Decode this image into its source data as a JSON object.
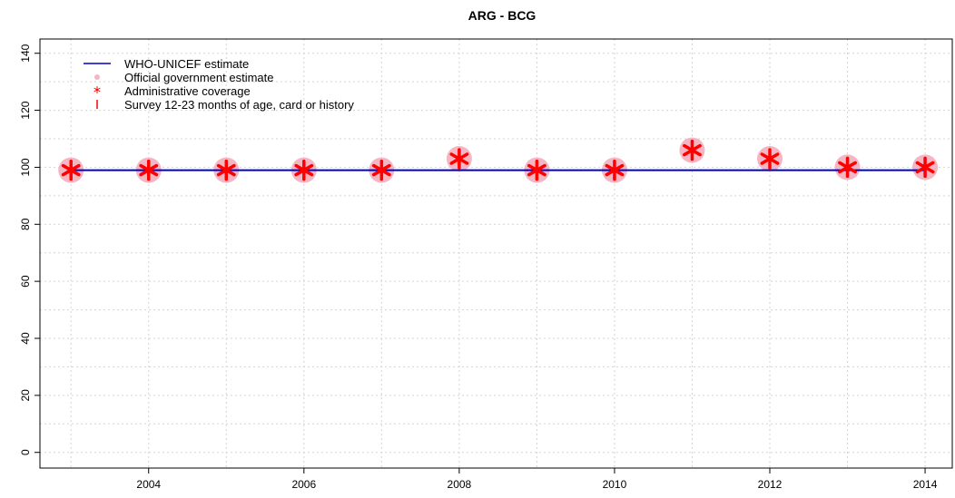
{
  "chart_data": {
    "type": "line",
    "title": "ARG  -  BCG",
    "xlabel": "",
    "ylabel": "",
    "xlim": [
      2002.6,
      2014.35
    ],
    "ylim": [
      -5.5,
      145
    ],
    "x_ticks": [
      2004,
      2006,
      2008,
      2010,
      2012,
      2014
    ],
    "x_tick_labels": [
      "2004",
      "2006",
      "2008",
      "2010",
      "2012",
      "2014"
    ],
    "y_ticks": [
      0,
      20,
      40,
      60,
      80,
      100,
      120,
      140
    ],
    "y_tick_labels": [
      "0",
      "20",
      "40",
      "60",
      "80",
      "100",
      "120",
      "140"
    ],
    "grid": true,
    "legend_position": "top-left",
    "series": [
      {
        "name": "WHO-UNICEF estimate",
        "kind": "line",
        "color": "#0000cc",
        "x": [
          2003,
          2004,
          2005,
          2006,
          2007,
          2008,
          2009,
          2010,
          2011,
          2012,
          2013,
          2014
        ],
        "values": [
          99,
          99,
          99,
          99,
          99,
          99,
          99,
          99,
          99,
          99,
          99,
          99
        ]
      },
      {
        "name": "Official government estimate",
        "kind": "points-circle",
        "color": "#f4b6c2",
        "x": [
          2003,
          2004,
          2005,
          2006,
          2007,
          2008,
          2009,
          2010,
          2011,
          2012,
          2013,
          2014
        ],
        "values": [
          99,
          99,
          99,
          99,
          99,
          103,
          99,
          99,
          106,
          103,
          100,
          100
        ]
      },
      {
        "name": "Administrative coverage",
        "kind": "points-star",
        "color": "#ff0000",
        "x": [
          2003,
          2004,
          2005,
          2006,
          2007,
          2008,
          2009,
          2010,
          2011,
          2012,
          2013,
          2014
        ],
        "values": [
          99,
          99,
          99,
          99,
          99,
          103,
          99,
          99,
          106,
          103,
          100,
          100
        ]
      },
      {
        "name": "Survey 12-23 months of age, card or history",
        "kind": "bar-marker",
        "color": "#ff0000",
        "x": [],
        "values": []
      }
    ]
  }
}
